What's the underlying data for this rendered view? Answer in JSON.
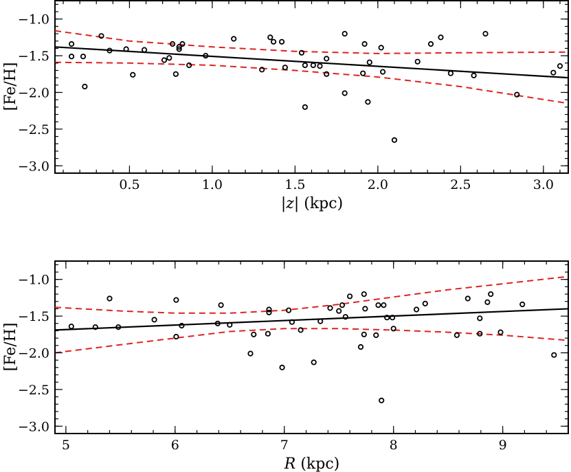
{
  "chart_data": [
    {
      "type": "scatter",
      "xlabel": "|z| (kpc)",
      "ylabel": "[Fe/H]",
      "xlim": [
        0.05,
        3.15
      ],
      "ylim": [
        -3.1,
        -0.75
      ],
      "xticks": [
        0.5,
        1.0,
        1.5,
        2.0,
        2.5,
        3.0
      ],
      "xtick_labels": [
        "0.5",
        "1.0",
        "1.5",
        "2.0",
        "2.5",
        "3.0"
      ],
      "yticks": [
        -1.0,
        -1.5,
        -2.0,
        -2.5,
        -3.0
      ],
      "ytick_labels": [
        "−1.0",
        "−1.5",
        "−2.0",
        "−2.5",
        "−3.0"
      ],
      "points": [
        [
          0.15,
          -1.34
        ],
        [
          0.15,
          -1.51
        ],
        [
          0.22,
          -1.51
        ],
        [
          0.23,
          -1.92
        ],
        [
          0.33,
          -1.23
        ],
        [
          0.38,
          -1.43
        ],
        [
          0.48,
          -1.41
        ],
        [
          0.52,
          -1.76
        ],
        [
          0.59,
          -1.42
        ],
        [
          0.71,
          -1.56
        ],
        [
          0.74,
          -1.53
        ],
        [
          0.76,
          -1.34
        ],
        [
          0.78,
          -1.75
        ],
        [
          0.8,
          -1.38
        ],
        [
          0.8,
          -1.41
        ],
        [
          0.82,
          -1.34
        ],
        [
          0.86,
          -1.63
        ],
        [
          0.96,
          -1.5
        ],
        [
          1.13,
          -1.27
        ],
        [
          1.3,
          -1.69
        ],
        [
          1.35,
          -1.25
        ],
        [
          1.37,
          -1.31
        ],
        [
          1.42,
          -1.31
        ],
        [
          1.44,
          -1.66
        ],
        [
          1.54,
          -1.46
        ],
        [
          1.56,
          -2.2
        ],
        [
          1.56,
          -1.63
        ],
        [
          1.61,
          -1.63
        ],
        [
          1.65,
          -1.64
        ],
        [
          1.69,
          -1.54
        ],
        [
          1.69,
          -1.75
        ],
        [
          1.8,
          -1.2
        ],
        [
          1.8,
          -2.01
        ],
        [
          1.91,
          -1.74
        ],
        [
          1.92,
          -1.34
        ],
        [
          1.94,
          -2.13
        ],
        [
          1.95,
          -1.59
        ],
        [
          2.02,
          -1.39
        ],
        [
          2.03,
          -1.72
        ],
        [
          2.1,
          -2.65
        ],
        [
          2.24,
          -1.58
        ],
        [
          2.32,
          -1.34
        ],
        [
          2.38,
          -1.25
        ],
        [
          2.44,
          -1.74
        ],
        [
          2.58,
          -1.77
        ],
        [
          2.65,
          -1.2
        ],
        [
          2.84,
          -2.03
        ],
        [
          3.06,
          -1.73
        ],
        [
          3.1,
          -1.64
        ]
      ],
      "fit_line": [
        [
          0.05,
          -1.38
        ],
        [
          3.15,
          -1.8
        ]
      ],
      "band_upper": [
        [
          0.05,
          -1.16
        ],
        [
          0.5,
          -1.3
        ],
        [
          1.0,
          -1.38
        ],
        [
          1.5,
          -1.44
        ],
        [
          2.0,
          -1.47
        ],
        [
          2.5,
          -1.46
        ],
        [
          3.15,
          -1.45
        ]
      ],
      "band_lower": [
        [
          0.05,
          -1.59
        ],
        [
          0.5,
          -1.6
        ],
        [
          1.0,
          -1.63
        ],
        [
          1.5,
          -1.7
        ],
        [
          2.0,
          -1.79
        ],
        [
          2.5,
          -1.92
        ],
        [
          3.15,
          -2.15
        ]
      ]
    },
    {
      "type": "scatter",
      "xlabel": "R (kpc)",
      "ylabel": "[Fe/H]",
      "xlim": [
        4.9,
        9.6
      ],
      "ylim": [
        -3.1,
        -0.75
      ],
      "xticks": [
        5,
        6,
        7,
        8,
        9
      ],
      "xtick_labels": [
        "5",
        "6",
        "7",
        "8",
        "9"
      ],
      "yticks": [
        -1.0,
        -1.5,
        -2.0,
        -2.5,
        -3.0
      ],
      "ytick_labels": [
        "−1.0",
        "−1.5",
        "−2.0",
        "−2.5",
        "−3.0"
      ],
      "points": [
        [
          5.05,
          -1.64
        ],
        [
          5.27,
          -1.65
        ],
        [
          5.4,
          -1.26
        ],
        [
          5.48,
          -1.65
        ],
        [
          5.81,
          -1.55
        ],
        [
          6.01,
          -1.28
        ],
        [
          6.01,
          -1.78
        ],
        [
          6.06,
          -1.63
        ],
        [
          6.39,
          -1.6
        ],
        [
          6.42,
          -1.35
        ],
        [
          6.5,
          -1.62
        ],
        [
          6.69,
          -2.01
        ],
        [
          6.72,
          -1.75
        ],
        [
          6.85,
          -1.74
        ],
        [
          6.86,
          -1.45
        ],
        [
          6.86,
          -1.41
        ],
        [
          6.98,
          -2.2
        ],
        [
          7.04,
          -1.42
        ],
        [
          7.07,
          -1.58
        ],
        [
          7.15,
          -1.69
        ],
        [
          7.27,
          -2.13
        ],
        [
          7.33,
          -1.57
        ],
        [
          7.42,
          -1.39
        ],
        [
          7.5,
          -1.43
        ],
        [
          7.53,
          -1.35
        ],
        [
          7.56,
          -1.51
        ],
        [
          7.6,
          -1.23
        ],
        [
          7.7,
          -1.92
        ],
        [
          7.73,
          -1.2
        ],
        [
          7.73,
          -1.75
        ],
        [
          7.74,
          -1.4
        ],
        [
          7.84,
          -1.76
        ],
        [
          7.86,
          -1.35
        ],
        [
          7.89,
          -2.65
        ],
        [
          7.91,
          -1.35
        ],
        [
          7.94,
          -1.52
        ],
        [
          7.99,
          -1.52
        ],
        [
          8.0,
          -1.67
        ],
        [
          8.21,
          -1.41
        ],
        [
          8.29,
          -1.33
        ],
        [
          8.58,
          -1.76
        ],
        [
          8.68,
          -1.26
        ],
        [
          8.79,
          -1.74
        ],
        [
          8.79,
          -1.53
        ],
        [
          8.86,
          -1.31
        ],
        [
          8.89,
          -1.2
        ],
        [
          8.98,
          -1.72
        ],
        [
          9.18,
          -1.34
        ],
        [
          9.47,
          -2.03
        ]
      ],
      "fit_line": [
        [
          4.9,
          -1.69
        ],
        [
          9.6,
          -1.4
        ]
      ],
      "band_upper": [
        [
          4.9,
          -1.38
        ],
        [
          5.5,
          -1.43
        ],
        [
          6.0,
          -1.46
        ],
        [
          6.5,
          -1.46
        ],
        [
          7.0,
          -1.42
        ],
        [
          7.5,
          -1.34
        ],
        [
          8.0,
          -1.24
        ],
        [
          8.5,
          -1.14
        ],
        [
          9.0,
          -1.06
        ],
        [
          9.6,
          -0.96
        ]
      ],
      "band_lower": [
        [
          4.9,
          -2.0
        ],
        [
          5.5,
          -1.89
        ],
        [
          6.0,
          -1.8
        ],
        [
          6.5,
          -1.71
        ],
        [
          7.0,
          -1.67
        ],
        [
          7.5,
          -1.67
        ],
        [
          8.0,
          -1.69
        ],
        [
          8.5,
          -1.72
        ],
        [
          9.0,
          -1.76
        ],
        [
          9.6,
          -1.83
        ]
      ]
    }
  ]
}
